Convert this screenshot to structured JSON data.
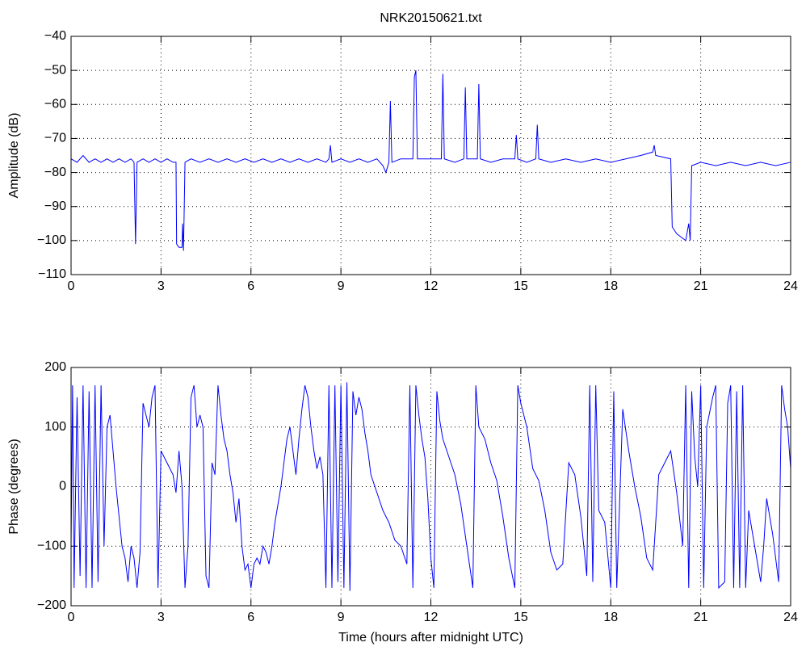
{
  "chart_data": [
    {
      "type": "line",
      "title": "NRK20150621.txt",
      "y_label": "Amplitude (dB)",
      "x": [
        0,
        0.2,
        0.4,
        0.6,
        0.8,
        1.0,
        1.2,
        1.4,
        1.6,
        1.8,
        2.0,
        2.1,
        2.15,
        2.2,
        2.4,
        2.6,
        2.8,
        3.0,
        3.2,
        3.4,
        3.5,
        3.52,
        3.6,
        3.7,
        3.72,
        3.75,
        3.8,
        4.0,
        4.3,
        4.6,
        4.9,
        5.2,
        5.5,
        5.8,
        6.1,
        6.4,
        6.7,
        7.0,
        7.3,
        7.6,
        7.9,
        8.2,
        8.5,
        8.6,
        8.65,
        8.7,
        9.0,
        9.3,
        9.6,
        9.9,
        10.2,
        10.4,
        10.5,
        10.6,
        10.65,
        10.7,
        11.0,
        11.4,
        11.45,
        11.5,
        11.55,
        12.0,
        12.35,
        12.4,
        12.45,
        12.8,
        13.1,
        13.15,
        13.2,
        13.55,
        13.6,
        13.65,
        14.0,
        14.4,
        14.8,
        14.85,
        14.9,
        15.2,
        15.5,
        15.55,
        15.6,
        16.0,
        16.5,
        17.0,
        17.5,
        18.0,
        18.5,
        19.0,
        19.4,
        19.45,
        19.5,
        20.0,
        20.05,
        20.2,
        20.5,
        20.6,
        20.65,
        20.7,
        21.0,
        21.5,
        22.0,
        22.5,
        23.0,
        23.5,
        24.0
      ],
      "series": [
        {
          "name": "amplitude",
          "color": "#0000ff",
          "values": [
            -76,
            -77,
            -75,
            -77,
            -76,
            -77,
            -76,
            -77,
            -76,
            -77,
            -76,
            -77,
            -101,
            -77,
            -76,
            -77,
            -76,
            -77,
            -76,
            -77,
            -77,
            -101,
            -102,
            -102,
            -95,
            -103,
            -77,
            -76,
            -77,
            -76,
            -77,
            -76,
            -77,
            -76,
            -77,
            -76,
            -77,
            -76,
            -77,
            -76,
            -77,
            -76,
            -77,
            -76,
            -72,
            -77,
            -76,
            -77,
            -76,
            -77,
            -76,
            -78,
            -80,
            -77,
            -59,
            -77,
            -76,
            -76,
            -52,
            -50,
            -76,
            -76,
            -76,
            -51,
            -76,
            -77,
            -76,
            -55,
            -76,
            -76,
            -54,
            -76,
            -77,
            -76,
            -76,
            -69,
            -76,
            -77,
            -76,
            -66,
            -76,
            -77,
            -76,
            -77,
            -76,
            -77,
            -76,
            -75,
            -74,
            -72,
            -75,
            -76,
            -96,
            -98,
            -100,
            -95,
            -100,
            -78,
            -77,
            -78,
            -77,
            -78,
            -77,
            -78,
            -77
          ]
        }
      ],
      "xlim": [
        0,
        24
      ],
      "xticks": [
        0,
        3,
        6,
        9,
        12,
        15,
        18,
        21,
        24
      ],
      "ylim": [
        -110,
        -40
      ],
      "yticks": [
        {
          "value": -110,
          "label": "−110"
        },
        {
          "value": -100,
          "label": "−100"
        },
        {
          "value": -90,
          "label": "−90"
        },
        {
          "value": -80,
          "label": "−80"
        },
        {
          "value": -70,
          "label": "−70"
        },
        {
          "value": -60,
          "label": "−60"
        },
        {
          "value": -50,
          "label": "−50"
        },
        {
          "value": -40,
          "label": "−40"
        }
      ],
      "grid": true
    },
    {
      "type": "line",
      "x_label": "Time (hours after midnight UTC)",
      "y_label": "Phase (degrees)",
      "x": [
        0,
        0.05,
        0.1,
        0.2,
        0.3,
        0.4,
        0.5,
        0.6,
        0.7,
        0.8,
        0.9,
        1.0,
        1.1,
        1.2,
        1.3,
        1.4,
        1.5,
        1.6,
        1.7,
        1.8,
        1.9,
        2.0,
        2.1,
        2.2,
        2.3,
        2.4,
        2.5,
        2.6,
        2.7,
        2.8,
        2.9,
        3.0,
        3.1,
        3.2,
        3.3,
        3.4,
        3.5,
        3.6,
        3.7,
        3.8,
        3.9,
        4.0,
        4.1,
        4.2,
        4.3,
        4.4,
        4.5,
        4.6,
        4.7,
        4.8,
        4.9,
        5.0,
        5.1,
        5.2,
        5.3,
        5.4,
        5.5,
        5.6,
        5.7,
        5.8,
        5.9,
        6.0,
        6.1,
        6.2,
        6.3,
        6.4,
        6.5,
        6.6,
        6.7,
        6.8,
        6.9,
        7.0,
        7.1,
        7.2,
        7.3,
        7.4,
        7.5,
        7.6,
        7.7,
        7.8,
        7.9,
        8.0,
        8.1,
        8.2,
        8.3,
        8.4,
        8.5,
        8.6,
        8.7,
        8.8,
        8.9,
        9.0,
        9.1,
        9.2,
        9.3,
        9.4,
        9.5,
        9.6,
        9.7,
        9.8,
        9.9,
        10.0,
        10.2,
        10.4,
        10.6,
        10.8,
        11.0,
        11.2,
        11.3,
        11.4,
        11.5,
        11.6,
        11.7,
        11.8,
        11.9,
        12.0,
        12.1,
        12.2,
        12.3,
        12.4,
        12.6,
        12.8,
        13.0,
        13.2,
        13.4,
        13.5,
        13.6,
        13.8,
        14.0,
        14.2,
        14.4,
        14.6,
        14.8,
        14.9,
        15.0,
        15.2,
        15.4,
        15.6,
        15.8,
        16.0,
        16.2,
        16.4,
        16.6,
        16.8,
        17.0,
        17.2,
        17.3,
        17.4,
        17.5,
        17.6,
        17.8,
        18.0,
        18.1,
        18.2,
        18.4,
        18.6,
        18.8,
        19.0,
        19.2,
        19.4,
        19.6,
        19.8,
        20.0,
        20.2,
        20.4,
        20.5,
        20.6,
        20.7,
        20.8,
        20.9,
        21.0,
        21.1,
        21.2,
        21.4,
        21.5,
        21.6,
        21.8,
        21.9,
        22.0,
        22.1,
        22.2,
        22.3,
        22.4,
        22.5,
        22.6,
        22.8,
        23.0,
        23.1,
        23.2,
        23.4,
        23.6,
        23.7,
        23.8,
        23.9,
        24.0
      ],
      "series": [
        {
          "name": "phase",
          "color": "#0000ff",
          "values": [
            -100,
            170,
            -170,
            150,
            -150,
            170,
            -170,
            160,
            -170,
            170,
            -160,
            170,
            -100,
            100,
            120,
            60,
            0,
            -50,
            -100,
            -120,
            -160,
            -100,
            -120,
            -170,
            -110,
            140,
            120,
            100,
            150,
            170,
            -170,
            60,
            50,
            40,
            30,
            20,
            -10,
            60,
            0,
            -170,
            -100,
            150,
            170,
            100,
            120,
            100,
            -150,
            -170,
            40,
            20,
            170,
            120,
            80,
            60,
            20,
            -10,
            -60,
            -20,
            -100,
            -140,
            -130,
            -170,
            -130,
            -120,
            -130,
            -100,
            -110,
            -130,
            -100,
            -60,
            -30,
            0,
            40,
            80,
            100,
            60,
            20,
            80,
            130,
            170,
            150,
            100,
            60,
            30,
            50,
            20,
            -170,
            170,
            -170,
            170,
            -160,
            170,
            -170,
            175,
            -175,
            160,
            120,
            150,
            130,
            90,
            60,
            20,
            -10,
            -40,
            -60,
            -90,
            -100,
            -130,
            170,
            -170,
            170,
            120,
            80,
            50,
            -20,
            -120,
            -170,
            160,
            110,
            80,
            50,
            20,
            -30,
            -100,
            -170,
            170,
            100,
            80,
            40,
            10,
            -50,
            -120,
            -170,
            170,
            140,
            100,
            30,
            10,
            -40,
            -110,
            -140,
            -130,
            40,
            20,
            -50,
            -150,
            170,
            -160,
            170,
            -40,
            -60,
            -170,
            160,
            -170,
            130,
            60,
            0,
            -50,
            -120,
            -140,
            20,
            40,
            60,
            -10,
            -100,
            170,
            -170,
            160,
            50,
            0,
            170,
            -170,
            100,
            150,
            170,
            -170,
            -160,
            140,
            170,
            -170,
            160,
            -170,
            170,
            -170,
            -40,
            -100,
            -160,
            -100,
            -20,
            -80,
            -160,
            170,
            130,
            100,
            30
          ]
        }
      ],
      "xlim": [
        0,
        24
      ],
      "xticks": [
        0,
        3,
        6,
        9,
        12,
        15,
        18,
        21,
        24
      ],
      "ylim": [
        -200,
        200
      ],
      "yticks": [
        {
          "value": -200,
          "label": "−200"
        },
        {
          "value": -100,
          "label": "−100"
        },
        0,
        100,
        200
      ],
      "grid": true
    }
  ]
}
